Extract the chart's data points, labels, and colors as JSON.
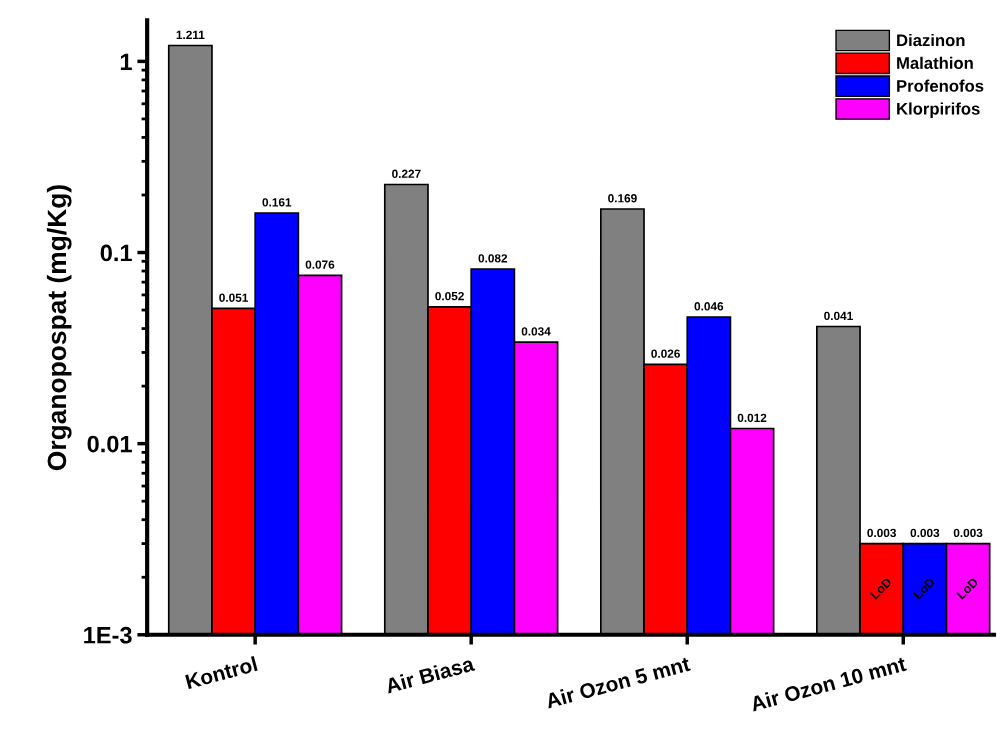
{
  "chart_data": {
    "type": "bar",
    "ylabel": "Organopospat (mg/Kg)",
    "categories": [
      "Kontrol",
      "Air Biasa",
      "Air Ozon 5 mnt",
      "Air Ozon 10 mnt"
    ],
    "series": [
      {
        "name": "Diazinon",
        "color": "#808080",
        "values": [
          1.211,
          0.227,
          0.169,
          0.041
        ]
      },
      {
        "name": "Malathion",
        "color": "#ff0000",
        "values": [
          0.051,
          0.052,
          0.026,
          0.003
        ]
      },
      {
        "name": "Profenofos",
        "color": "#0000ff",
        "values": [
          0.161,
          0.082,
          0.046,
          0.003
        ]
      },
      {
        "name": "Klorpirifos",
        "color": "#ff00ff",
        "values": [
          0.076,
          0.034,
          0.012,
          0.003
        ]
      }
    ],
    "log": true,
    "ylim": [
      0.001,
      1.64
    ],
    "yticks": [
      1,
      0.1,
      0.01,
      {
        "value": 0.001,
        "label": "1E-3"
      }
    ],
    "data_labels": true,
    "grid": false,
    "legend": "top right",
    "annotations": [
      "LoD",
      "LoD",
      "LoD"
    ]
  }
}
